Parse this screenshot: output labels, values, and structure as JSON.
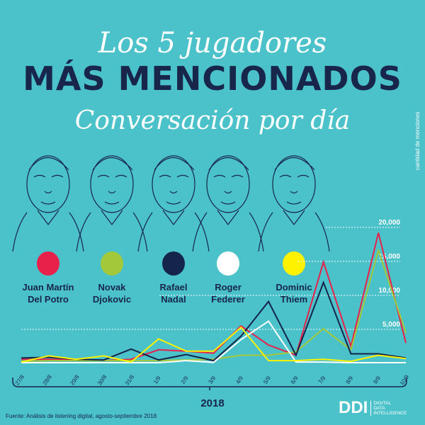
{
  "title": {
    "line1": "Los 5 jugadores",
    "line2": "MÁS MENCIONADOS",
    "line3": "Conversación por día"
  },
  "players": [
    {
      "name1": "Juan Martín",
      "name2": "Del Potro",
      "color": "#e8214b"
    },
    {
      "name1": "Novak",
      "name2": "Djokovic",
      "color": "#a3c93a"
    },
    {
      "name1": "Rafael",
      "name2": "Nadal",
      "color": "#14244a"
    },
    {
      "name1": "Roger",
      "name2": "Federer",
      "color": "#ffffff"
    },
    {
      "name1": "Dominic",
      "name2": "Thiem",
      "color": "#fff200"
    }
  ],
  "footer": {
    "year": "2018",
    "source": "Fuente: Análisis de listening digital, agosto-septiembre 2018",
    "logo_mark": "DDI",
    "logo_text": [
      "DIGITAL",
      "DATA",
      "INTELLIGENCE"
    ]
  },
  "chart_data": {
    "type": "line",
    "ylabel": "cantidad de menciones",
    "xlabel": "2018",
    "ylim": [
      0,
      21000
    ],
    "yticks": [
      5000,
      10000,
      15000,
      20000
    ],
    "ytick_labels": [
      "5,000",
      "10,000",
      "15,000",
      "20,000"
    ],
    "grid": "dotted horizontal",
    "x": [
      "27/8",
      "28/8",
      "29/8",
      "30/8",
      "31/8",
      "1/9",
      "2/9",
      "3/9",
      "4/9",
      "5/9",
      "6/9",
      "7/9",
      "8/9",
      "9/9",
      "10/9"
    ],
    "series": [
      {
        "name": "Juan Martín Del Potro",
        "color": "#e8214b",
        "values": [
          600,
          600,
          500,
          400,
          600,
          2000,
          1800,
          1500,
          5500,
          2700,
          1200,
          14900,
          2500,
          19200,
          3000
        ]
      },
      {
        "name": "Novak Djokovic",
        "color": "#a3c93a",
        "values": [
          300,
          400,
          400,
          400,
          400,
          400,
          500,
          600,
          1200,
          1200,
          1700,
          5100,
          2000,
          16600,
          4500
        ]
      },
      {
        "name": "Rafael Nadal",
        "color": "#14244a",
        "values": [
          800,
          900,
          600,
          500,
          2100,
          500,
          1300,
          400,
          4000,
          9100,
          1200,
          11900,
          1400,
          1400,
          800
        ]
      },
      {
        "name": "Roger Federer",
        "color": "#ffffff",
        "values": [
          100,
          100,
          100,
          100,
          100,
          100,
          400,
          150,
          3500,
          6200,
          200,
          200,
          100,
          100,
          100
        ]
      },
      {
        "name": "Dominic Thiem",
        "color": "#fff200",
        "values": [
          200,
          1100,
          600,
          1100,
          200,
          3600,
          1800,
          1800,
          5300,
          400,
          400,
          600,
          300,
          1200,
          700
        ]
      }
    ]
  }
}
